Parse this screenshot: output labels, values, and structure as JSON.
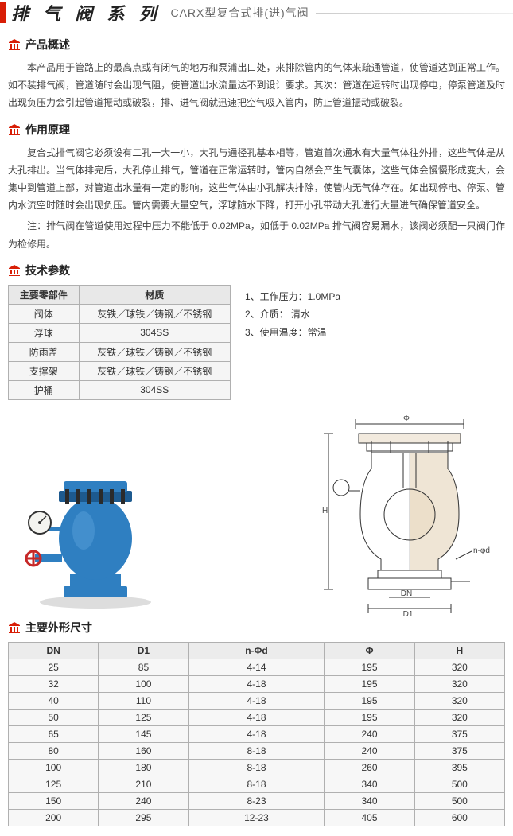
{
  "header": {
    "series": "排 气 阀 系 列",
    "model": "CARX型复合式排(进)气阀"
  },
  "sections": {
    "overview_title": "产品概述",
    "overview_p": "本产品用于管路上的最高点或有闭气的地方和泵浦出口处，来排除管内的气体来疏通管道，使管道达到正常工作。如不装排气阀，管道随时会出现气阻，使管道出水流量达不到设计要求。其次：管道在运转时出现停电，停泵管道及时出现负压力会引起管道振动或破裂，排、进气阀就迅速把空气吸入管内，防止管道振动或破裂。",
    "principle_title": "作用原理",
    "principle_p1": "复合式排气阀它必须设有二孔一大一小，大孔与通径孔基本相等，管道首次通水有大量气体往外排，这些气体是从大孔排出。当气体排完后，大孔停止排气，管道在正常运转时，管内自然会产生气囊体，这些气体会慢慢形成变大，会集中到管道上部，对管道出水量有一定的影响，这些气体由小孔解决排除，使管内无气体存在。如出现停电、停泵、管内水流空时随时会出现负压。管内需要大量空气，浮球随水下降，打开小孔带动大孔进行大量进气确保管道安全。",
    "principle_p2": "注：排气阀在管道使用过程中压力不能低于 0.02MPa，如低于 0.02MPa 排气阀容易漏水，该阀必须配一只阀门作为检修用。",
    "params_title": "技术参数",
    "dimensions_title": "主要外形尺寸"
  },
  "materials": {
    "col1": "主要零部件",
    "col2": "材质",
    "rows": [
      {
        "part": "阀体",
        "mat": "灰铁／球铁／铸钢／不锈钢"
      },
      {
        "part": "浮球",
        "mat": "304SS"
      },
      {
        "part": "防雨盖",
        "mat": "灰铁／球铁／铸钢／不锈钢"
      },
      {
        "part": "支撑架",
        "mat": "灰铁／球铁／铸钢／不锈钢"
      },
      {
        "part": "护桶",
        "mat": "304SS"
      }
    ]
  },
  "conditions": {
    "c1": "1、工作压力：1.0MPa",
    "c2": "2、介质：  清水",
    "c3": "3、使用温度：常温"
  },
  "diagram": {
    "phi": "Φ",
    "H": "H",
    "nphid": "n-φd",
    "DN": "DN",
    "D1": "D1"
  },
  "dims": {
    "headers": [
      "DN",
      "D1",
      "n-Φd",
      "Φ",
      "H"
    ],
    "rows": [
      [
        "25",
        "85",
        "4-14",
        "195",
        "320"
      ],
      [
        "32",
        "100",
        "4-18",
        "195",
        "320"
      ],
      [
        "40",
        "110",
        "4-18",
        "195",
        "320"
      ],
      [
        "50",
        "125",
        "4-18",
        "195",
        "320"
      ],
      [
        "65",
        "145",
        "4-18",
        "240",
        "375"
      ],
      [
        "80",
        "160",
        "8-18",
        "240",
        "375"
      ],
      [
        "100",
        "180",
        "8-18",
        "260",
        "395"
      ],
      [
        "125",
        "210",
        "8-18",
        "340",
        "500"
      ],
      [
        "150",
        "240",
        "8-23",
        "340",
        "500"
      ],
      [
        "200",
        "295",
        "12-23",
        "405",
        "600"
      ]
    ]
  },
  "colors": {
    "valve_body": "#2f7fc1",
    "valve_shadow": "#1d5a8f",
    "gauge_face": "#f4f4f0",
    "gauge_rim": "#333",
    "handwheel": "#c62828",
    "diagram_line": "#333",
    "diagram_fill": "#c9a46b"
  }
}
